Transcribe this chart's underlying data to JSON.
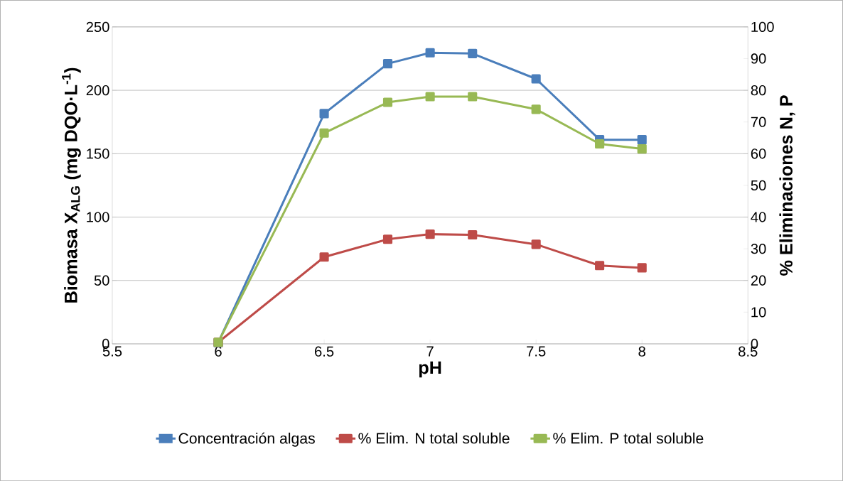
{
  "chart_data": {
    "type": "line",
    "xlabel": "pH",
    "ylabel": "Biomasa X$_{ALG}$ (mg DQO·L$^{-1}$)",
    "y2label": "% Eliminaciones N, P",
    "x": [
      6,
      6.5,
      6.8,
      7,
      7.2,
      7.5,
      7.8,
      8
    ],
    "series": [
      {
        "name": "Concentración algas",
        "color": "#4a7ebb",
        "values": [
          1,
          181.6,
          221,
          229.6,
          229,
          209,
          161,
          161
        ]
      },
      {
        "name": "% Elim. N total soluble",
        "color": "#be4b48",
        "axis": "y2",
        "values": [
          0.5,
          27.4,
          33,
          34.6,
          34.4,
          31.4,
          24.7,
          24
        ]
      },
      {
        "name": "% Elim. P total soluble",
        "color": "#98b954",
        "axis": "y2",
        "values": [
          0.5,
          66.5,
          76.2,
          78,
          78,
          74,
          63.1,
          61.5
        ]
      }
    ],
    "xlim": [
      5.5,
      8.5
    ],
    "xticks": [
      5.5,
      6,
      6.5,
      7,
      7.5,
      8,
      8.5
    ],
    "ylim": [
      0,
      250
    ],
    "yticks": [
      0,
      50,
      100,
      150,
      200,
      250
    ],
    "y2lim": [
      0,
      100
    ],
    "y2ticks": [
      0,
      10,
      20,
      30,
      40,
      50,
      60,
      70,
      80,
      90,
      100
    ],
    "grid": "y",
    "legend": "bottom",
    "marker": "square",
    "line_style": "solid"
  }
}
